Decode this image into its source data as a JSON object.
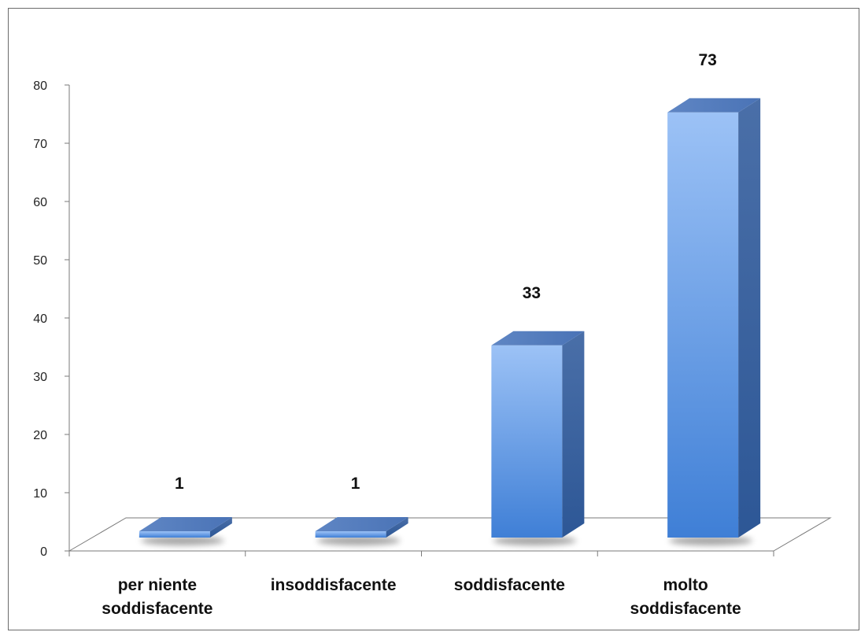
{
  "chart_data": {
    "type": "bar",
    "categories": [
      [
        "per niente",
        "soddisfacente"
      ],
      [
        "insoddisfacente"
      ],
      [
        "soddisfacente"
      ],
      [
        "molto",
        "soddisfacente"
      ]
    ],
    "values": [
      1,
      1,
      33,
      73
    ],
    "data_labels": [
      "1",
      "1",
      "33",
      "73"
    ],
    "y_ticks": [
      "0",
      "10",
      "20",
      "30",
      "40",
      "50",
      "60",
      "70",
      "80"
    ],
    "ylim": [
      0,
      80
    ],
    "style": "3d-column",
    "bar_color": "#4a86d6",
    "grid": false,
    "legend": "none"
  }
}
